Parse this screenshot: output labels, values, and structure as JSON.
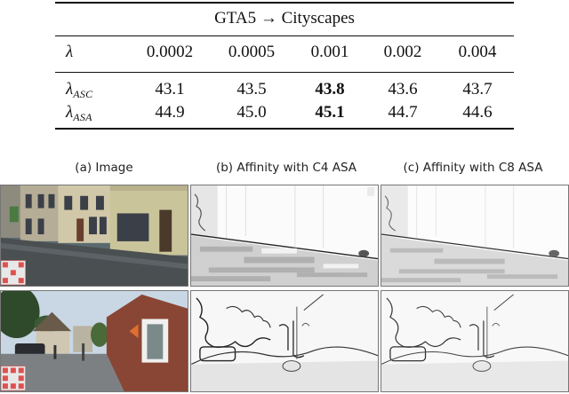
{
  "table": {
    "title": "GTA5 → Cityscapes",
    "header_label": "λ",
    "columns": [
      "0.0002",
      "0.0005",
      "0.001",
      "0.002",
      "0.004"
    ],
    "rows": [
      {
        "label": "λ",
        "label_sub": "ASC",
        "values": [
          "43.1",
          "43.5",
          "43.8",
          "43.6",
          "43.7"
        ],
        "bold_index": 2
      },
      {
        "label": "λ",
        "label_sub": "ASA",
        "values": [
          "44.9",
          "45.0",
          "45.1",
          "44.7",
          "44.6"
        ],
        "bold_index": 2
      }
    ]
  },
  "figure": {
    "captions": [
      "(a) Image",
      "(b) Affinity with C4 ASA",
      "(c) Affinity with C8 ASA"
    ],
    "panel_kinds": [
      "photo",
      "affinity-map",
      "affinity-map"
    ],
    "rows": 2,
    "colors": {
      "sky_row2": "#c9d7e4",
      "building_row1": "#c9c49a",
      "road": "#4a4f52",
      "brick": "#8a4634",
      "marker": "#e05050"
    }
  }
}
